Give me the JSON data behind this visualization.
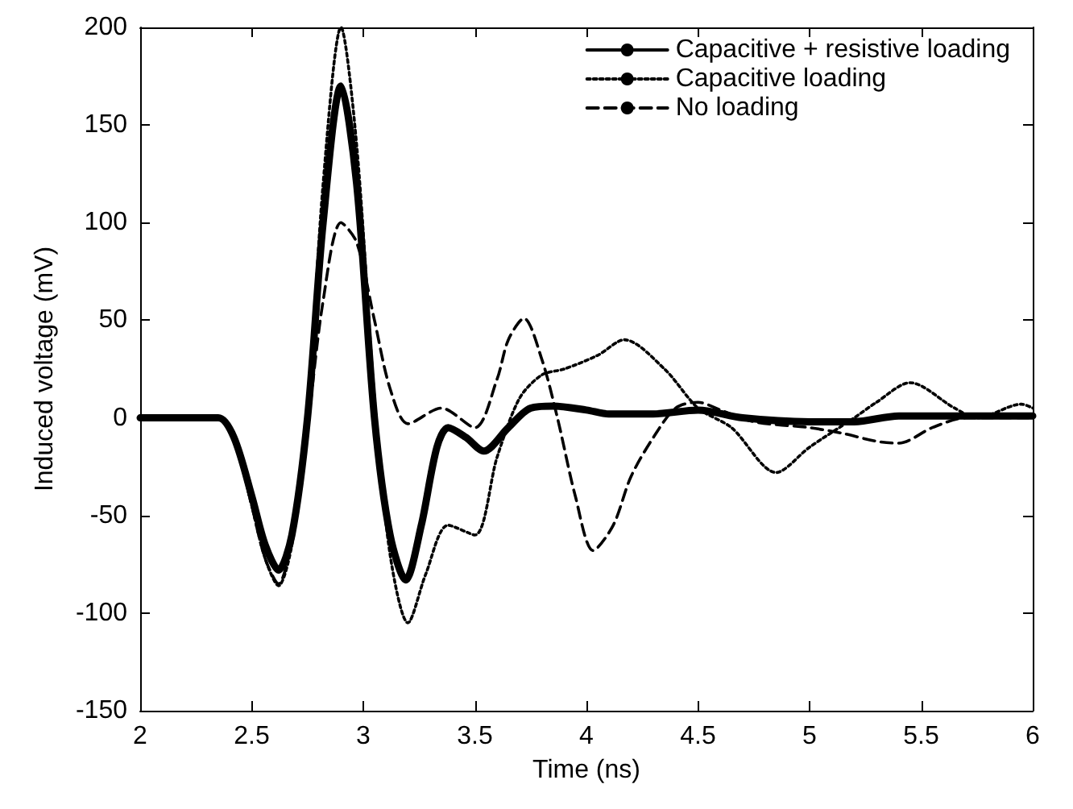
{
  "chart_data": {
    "type": "line",
    "xlabel": "Time (ns)",
    "ylabel": "Induced voltage (mV)",
    "xlim": [
      2,
      6
    ],
    "xticks": [
      2,
      2.5,
      3,
      3.5,
      4,
      4.5,
      5,
      5.5,
      6
    ],
    "ylim": [
      -150,
      200
    ],
    "yticks": [
      -150,
      -100,
      -50,
      0,
      50,
      100,
      150,
      200
    ],
    "grid": false,
    "legend": "top right",
    "marker": "none",
    "series": [
      {
        "name": "Capacitive + resistive loading",
        "color": "#000000",
        "line_style": "solid",
        "x": [
          2,
          2.35,
          2.42,
          2.5,
          2.56,
          2.62,
          2.68,
          2.75,
          2.82,
          2.9,
          2.97,
          3.05,
          3.12,
          3.19,
          3.26,
          3.33,
          3.38,
          3.46,
          3.54,
          3.65,
          3.75,
          3.85,
          4.0,
          4.1,
          4.3,
          4.5,
          4.7,
          5.0,
          5.2,
          5.4,
          5.7,
          6
        ],
        "values": [
          0,
          0,
          -10,
          -40,
          -65,
          -78,
          -60,
          0,
          100,
          170,
          120,
          0,
          -60,
          -83,
          -55,
          -15,
          -5,
          -10,
          -17,
          -5,
          5,
          6,
          4,
          2,
          2,
          4,
          0,
          -2,
          -2,
          1,
          1,
          1
        ]
      },
      {
        "name": "Capacitive loading",
        "color": "#000000",
        "line_style": "dotted",
        "x": [
          2,
          2.35,
          2.42,
          2.5,
          2.56,
          2.62,
          2.68,
          2.75,
          2.82,
          2.9,
          2.97,
          3.05,
          3.12,
          3.2,
          3.28,
          3.38,
          3.5,
          3.6,
          3.7,
          3.8,
          3.9,
          4.05,
          4.17,
          4.35,
          4.5,
          4.65,
          4.85,
          5.0,
          5.2,
          5.3,
          5.45,
          5.65,
          5.75,
          5.95,
          6
        ],
        "values": [
          0,
          0,
          -10,
          -45,
          -72,
          -86,
          -65,
          0,
          120,
          200,
          140,
          10,
          -70,
          -105,
          -80,
          -55,
          -60,
          -20,
          10,
          22,
          25,
          32,
          40,
          25,
          5,
          -5,
          -28,
          -15,
          0,
          8,
          18,
          5,
          0,
          7,
          5
        ]
      },
      {
        "name": "No loading",
        "color": "#000000",
        "line_style": "dashed",
        "x": [
          2,
          2.35,
          2.42,
          2.5,
          2.56,
          2.62,
          2.68,
          2.75,
          2.82,
          2.9,
          2.97,
          3.05,
          3.12,
          3.2,
          3.35,
          3.5,
          3.6,
          3.65,
          3.72,
          3.8,
          3.87,
          3.95,
          4.03,
          4.12,
          4.2,
          4.3,
          4.4,
          4.5,
          4.6,
          4.75,
          5.0,
          5.15,
          5.3,
          5.4,
          5.55,
          5.7,
          6
        ],
        "values": [
          0,
          0,
          -10,
          -45,
          -72,
          -85,
          -62,
          -5,
          60,
          100,
          90,
          50,
          15,
          -3,
          5,
          -5,
          20,
          40,
          51,
          30,
          0,
          -40,
          -68,
          -55,
          -30,
          -10,
          5,
          8,
          4,
          -2,
          -5,
          -8,
          -12,
          -13,
          -5,
          0,
          0
        ]
      }
    ]
  }
}
